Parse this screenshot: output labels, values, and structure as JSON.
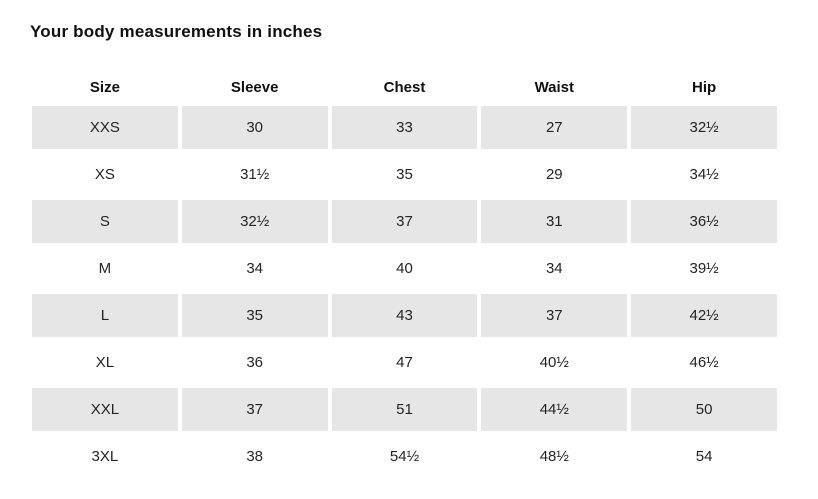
{
  "title": "Your body measurements in inches",
  "colors": {
    "background": "#ffffff",
    "row_shade": "#e6e6e6",
    "text": "#242424",
    "heading_text": "#111111"
  },
  "chart_data": {
    "type": "table",
    "title": "Your body measurements in inches",
    "columns": [
      "Size",
      "Sleeve",
      "Chest",
      "Waist",
      "Hip"
    ],
    "rows": [
      [
        "XXS",
        "30",
        "33",
        "27",
        "32½"
      ],
      [
        "XS",
        "31½",
        "35",
        "29",
        "34½"
      ],
      [
        "S",
        "32½",
        "37",
        "31",
        "36½"
      ],
      [
        "M",
        "34",
        "40",
        "34",
        "39½"
      ],
      [
        "L",
        "35",
        "43",
        "37",
        "42½"
      ],
      [
        "XL",
        "36",
        "47",
        "40½",
        "46½"
      ],
      [
        "XXL",
        "37",
        "51",
        "44½",
        "50"
      ],
      [
        "3XL",
        "38",
        "54½",
        "48½",
        "54"
      ]
    ],
    "shaded_row_indexes": [
      0,
      2,
      4,
      6
    ],
    "units": "inches",
    "layout": "alternating shaded rows, centered cells, no gridlines, 4px white gaps between cells"
  }
}
